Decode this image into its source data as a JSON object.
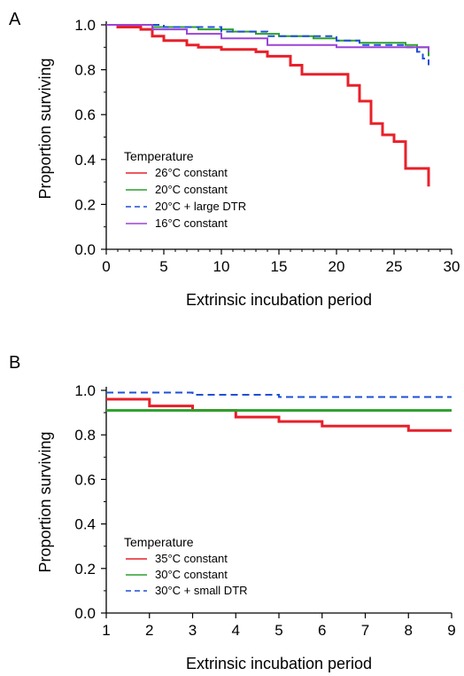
{
  "chart_data": [
    {
      "panel": "A",
      "type": "line",
      "xlabel": "Extrinsic incubation period",
      "ylabel": "Proportion surviving",
      "xlim": [
        0,
        30
      ],
      "ylim": [
        0,
        1.0
      ],
      "x_ticks": [
        "0",
        "5",
        "10",
        "15",
        "20",
        "25",
        "30"
      ],
      "y_ticks": [
        "0.0",
        "0.2",
        "0.4",
        "0.6",
        "0.8",
        "1.0"
      ],
      "legend_title": "Temperature",
      "legend_position": "bottom-left",
      "series": [
        {
          "name": "26°C constant",
          "color": "#e8202a",
          "dash": "solid",
          "width": 3,
          "points": [
            [
              1,
              1.0
            ],
            [
              1,
              0.99
            ],
            [
              3,
              0.99
            ],
            [
              3,
              0.98
            ],
            [
              4,
              0.98
            ],
            [
              4,
              0.95
            ],
            [
              5,
              0.95
            ],
            [
              5,
              0.93
            ],
            [
              7,
              0.93
            ],
            [
              7,
              0.91
            ],
            [
              8,
              0.91
            ],
            [
              8,
              0.9
            ],
            [
              10,
              0.9
            ],
            [
              10,
              0.89
            ],
            [
              13,
              0.89
            ],
            [
              13,
              0.88
            ],
            [
              14,
              0.88
            ],
            [
              14,
              0.86
            ],
            [
              16,
              0.86
            ],
            [
              16,
              0.82
            ],
            [
              17,
              0.82
            ],
            [
              17,
              0.78
            ],
            [
              21,
              0.78
            ],
            [
              21,
              0.73
            ],
            [
              22,
              0.73
            ],
            [
              22,
              0.66
            ],
            [
              23,
              0.66
            ],
            [
              23,
              0.56
            ],
            [
              24,
              0.56
            ],
            [
              24,
              0.51
            ],
            [
              25,
              0.51
            ],
            [
              25,
              0.48
            ],
            [
              26,
              0.48
            ],
            [
              26,
              0.36
            ],
            [
              28,
              0.36
            ],
            [
              28,
              0.28
            ]
          ]
        },
        {
          "name": "20°C constant",
          "color": "#2ca02c",
          "dash": "solid",
          "width": 2,
          "points": [
            [
              0,
              1.0
            ],
            [
              4,
              1.0
            ],
            [
              4,
              0.99
            ],
            [
              8,
              0.99
            ],
            [
              8,
              0.98
            ],
            [
              11,
              0.98
            ],
            [
              11,
              0.97
            ],
            [
              13,
              0.97
            ],
            [
              13,
              0.96
            ],
            [
              15,
              0.96
            ],
            [
              15,
              0.95
            ],
            [
              18,
              0.95
            ],
            [
              18,
              0.94
            ],
            [
              20,
              0.94
            ],
            [
              20,
              0.93
            ],
            [
              22,
              0.93
            ],
            [
              22,
              0.92
            ],
            [
              26,
              0.92
            ],
            [
              26,
              0.91
            ],
            [
              27,
              0.91
            ],
            [
              27,
              0.9
            ],
            [
              28,
              0.9
            ],
            [
              28,
              0.86
            ]
          ]
        },
        {
          "name": "20°C + large DTR",
          "color": "#1f4fd6",
          "dash": "dashed",
          "width": 2,
          "points": [
            [
              0,
              1.0
            ],
            [
              5,
              1.0
            ],
            [
              5,
              0.99
            ],
            [
              10,
              0.99
            ],
            [
              10,
              0.97
            ],
            [
              14,
              0.97
            ],
            [
              14,
              0.95
            ],
            [
              20,
              0.95
            ],
            [
              20,
              0.93
            ],
            [
              22,
              0.93
            ],
            [
              22,
              0.91
            ],
            [
              26,
              0.91
            ],
            [
              26,
              0.9
            ],
            [
              27,
              0.9
            ],
            [
              27,
              0.88
            ],
            [
              27.5,
              0.88
            ],
            [
              27.5,
              0.85
            ],
            [
              28,
              0.85
            ],
            [
              28,
              0.82
            ]
          ]
        },
        {
          "name": "16°C constant",
          "color": "#9b44d8",
          "dash": "solid",
          "width": 2,
          "points": [
            [
              0,
              1.0
            ],
            [
              4,
              1.0
            ],
            [
              4,
              0.98
            ],
            [
              7,
              0.98
            ],
            [
              7,
              0.96
            ],
            [
              10,
              0.96
            ],
            [
              10,
              0.94
            ],
            [
              14,
              0.94
            ],
            [
              14,
              0.91
            ],
            [
              20,
              0.91
            ],
            [
              20,
              0.9
            ],
            [
              28,
              0.9
            ],
            [
              28,
              0.88
            ]
          ]
        }
      ]
    },
    {
      "panel": "B",
      "type": "line",
      "xlabel": "Extrinsic incubation period",
      "ylabel": "Proportion surviving",
      "xlim": [
        1,
        9
      ],
      "ylim": [
        0,
        1.0
      ],
      "x_ticks": [
        "1",
        "2",
        "3",
        "4",
        "5",
        "6",
        "7",
        "8",
        "9"
      ],
      "y_ticks": [
        "0.0",
        "0.2",
        "0.4",
        "0.6",
        "0.8",
        "1.0"
      ],
      "legend_title": "Temperature",
      "legend_position": "bottom-left",
      "series": [
        {
          "name": "35°C constant",
          "color": "#e8202a",
          "dash": "solid",
          "width": 3,
          "points": [
            [
              1,
              0.96
            ],
            [
              2,
              0.96
            ],
            [
              2,
              0.93
            ],
            [
              3,
              0.93
            ],
            [
              3,
              0.91
            ],
            [
              4,
              0.91
            ],
            [
              4,
              0.88
            ],
            [
              5,
              0.88
            ],
            [
              5,
              0.86
            ],
            [
              6,
              0.86
            ],
            [
              6,
              0.84
            ],
            [
              8,
              0.84
            ],
            [
              8,
              0.82
            ],
            [
              9,
              0.82
            ]
          ]
        },
        {
          "name": "30°C constant",
          "color": "#2ca02c",
          "dash": "solid",
          "width": 3,
          "points": [
            [
              1,
              0.91
            ],
            [
              9,
              0.91
            ]
          ]
        },
        {
          "name": "30°C + small DTR",
          "color": "#1f4fd6",
          "dash": "dashed",
          "width": 2,
          "points": [
            [
              1,
              0.99
            ],
            [
              3,
              0.99
            ],
            [
              3,
              0.98
            ],
            [
              5,
              0.98
            ],
            [
              5,
              0.97
            ],
            [
              9,
              0.97
            ]
          ]
        }
      ]
    }
  ]
}
